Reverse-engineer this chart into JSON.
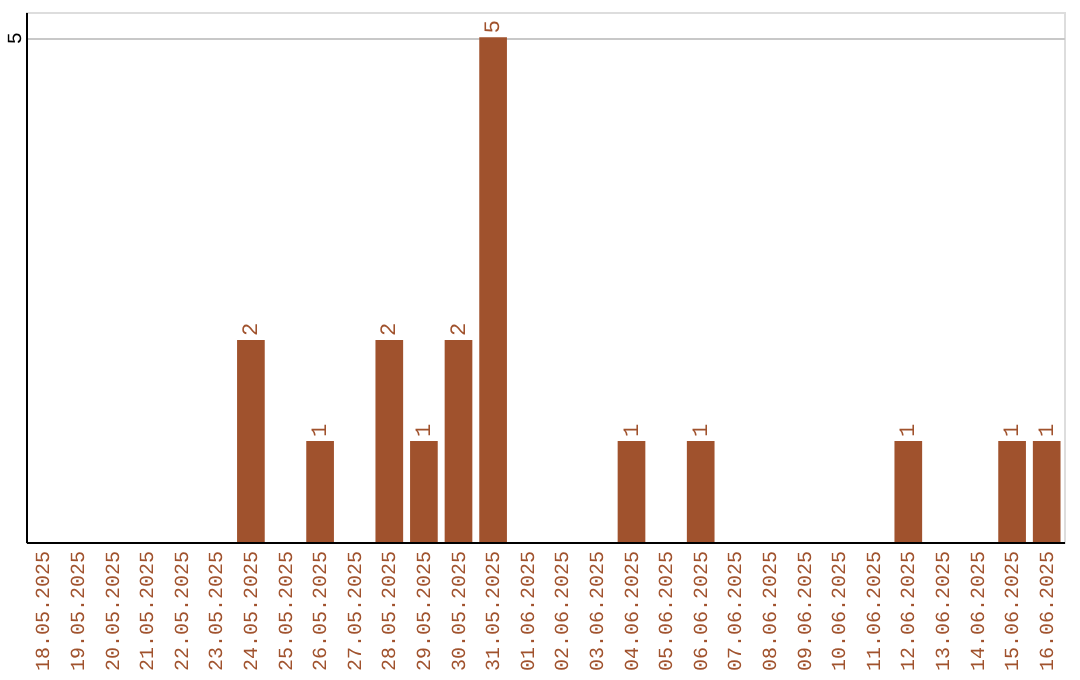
{
  "chart_data": {
    "type": "bar",
    "categories": [
      "18.05.2025",
      "19.05.2025",
      "20.05.2025",
      "21.05.2025",
      "22.05.2025",
      "23.05.2025",
      "24.05.2025",
      "25.05.2025",
      "26.05.2025",
      "27.05.2025",
      "28.05.2025",
      "29.05.2025",
      "30.05.2025",
      "31.05.2025",
      "01.06.2025",
      "02.06.2025",
      "03.06.2025",
      "04.06.2025",
      "05.06.2025",
      "06.06.2025",
      "07.06.2025",
      "08.06.2025",
      "09.06.2025",
      "10.06.2025",
      "11.06.2025",
      "12.06.2025",
      "13.06.2025",
      "14.06.2025",
      "15.06.2025",
      "16.06.2025"
    ],
    "values": [
      0,
      0,
      0,
      0,
      0,
      0,
      2,
      0,
      1,
      0,
      2,
      1,
      2,
      5,
      0,
      0,
      0,
      1,
      0,
      1,
      0,
      0,
      0,
      0,
      0,
      1,
      0,
      0,
      1,
      1
    ],
    "value_labels": [
      null,
      null,
      null,
      null,
      null,
      null,
      "2",
      null,
      "1",
      null,
      "2",
      "1",
      "2",
      "5",
      null,
      null,
      null,
      "1",
      null,
      "1",
      null,
      null,
      null,
      null,
      null,
      "1",
      null,
      null,
      "1",
      "1"
    ],
    "color": "#a0522d",
    "ylim": [
      0,
      5.25
    ],
    "yticks": [
      5
    ],
    "grid": "y"
  }
}
